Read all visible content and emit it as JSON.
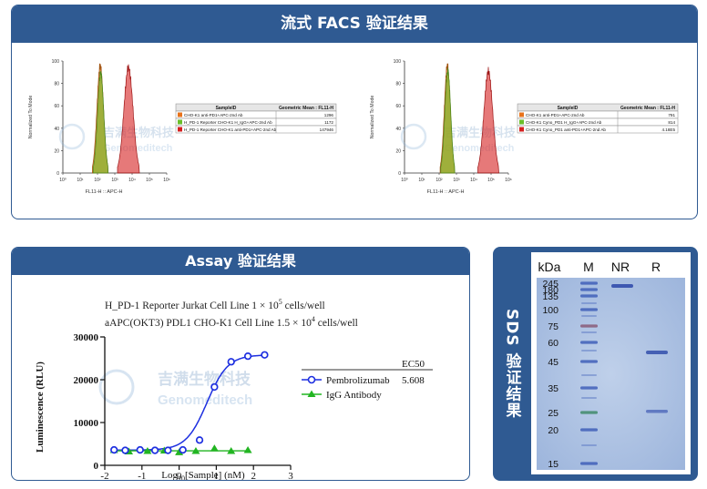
{
  "facs": {
    "title": "流式 FACS 验证结果",
    "left": {
      "y_axis_label": "Normalized To Mode",
      "x_axis_label": "FL11-H :: APC-H",
      "y_ticks": [
        "0",
        "20",
        "40",
        "60",
        "80",
        "100"
      ],
      "x_ticks": [
        "10⁰",
        "10¹",
        "10²",
        "10³",
        "10⁴",
        "10⁵",
        "10⁶"
      ],
      "table_headers": [
        "SampleID",
        "Geometric Mean : FL11-H"
      ],
      "rows": [
        {
          "sample": "CHO-K1 anti-PD1+APC-2nd Ab",
          "value": "1296",
          "color": "#e8731c"
        },
        {
          "sample": "H_PD-1 Reporter CHO-K1 H_IgG+APC-2nd Ab",
          "value": "1172",
          "color": "#6abf2a"
        },
        {
          "sample": "H_PD-1 Reporter CHO-K1 anti-PD1+APC-2nd Ab",
          "value": "147946",
          "color": "#d62020"
        }
      ]
    },
    "right": {
      "y_axis_label": "Normalized To Mode",
      "x_axis_label": "FL11-H :: APC-H",
      "y_ticks": [
        "0",
        "20",
        "40",
        "60",
        "80",
        "100"
      ],
      "x_ticks": [
        "10⁰",
        "10¹",
        "10²",
        "10³",
        "10⁴",
        "10⁵",
        "10⁶"
      ],
      "table_headers": [
        "SampleID",
        "Geometric Mean : FL11-H"
      ],
      "rows": [
        {
          "sample": "CHO-K1 anti-PD1+APC-2nd Ab",
          "value": "791",
          "color": "#e8731c"
        },
        {
          "sample": "CHO-K1 Cyno_PD1 H_IgG+APC-2nd Ab",
          "value": "814",
          "color": "#6abf2a"
        },
        {
          "sample": "CHO-K1 Cyno_PD1 anti-PD1+APC-2nd Ab",
          "value": "4.18E5",
          "color": "#d62020"
        }
      ]
    }
  },
  "assay": {
    "title": "Assay 验证结果",
    "header_line1": "H_PD-1 Reporter Jurkat Cell Line 1 × 10",
    "header_line1_exp": "5",
    "header_line1_unit": " cells/well",
    "header_line2": "aAPC(OKT3) PDL1 CHO-K1 Cell Line  1.5 × 10",
    "header_line2_exp": "4",
    "header_line2_unit": " cells/well",
    "legend_ec50_header": "EC50",
    "legend": [
      {
        "name": "Pembrolizumab",
        "ec50": "5.608",
        "color": "#1d2fe0",
        "marker": "circle"
      },
      {
        "name": "IgG Antibody",
        "ec50": "",
        "color": "#22b522",
        "marker": "triangle"
      }
    ],
    "ylabel": "Luminescence (RLU)",
    "xlabel_prefix": "Log",
    "xlabel_sub": "10",
    "xlabel_suffix": "[Sample] (nM)"
  },
  "chart_data": [
    {
      "type": "line",
      "title": "Assay 验证结果",
      "xlabel": "Log10[Sample] (nM)",
      "ylabel": "Luminescence (RLU)",
      "xlim": [
        -2,
        3
      ],
      "ylim": [
        0,
        30000
      ],
      "x_ticks": [
        "-2",
        "-1",
        "0",
        "1",
        "2",
        "3"
      ],
      "y_ticks": [
        "0",
        "10000",
        "20000",
        "30000"
      ],
      "series": [
        {
          "name": "Pembrolizumab",
          "x": [
            -1.75,
            -1.45,
            -1.05,
            -0.65,
            -0.3,
            0.1,
            0.55,
            0.95,
            1.4,
            1.85,
            2.3
          ],
          "y": [
            3600,
            3500,
            3600,
            3500,
            3500,
            3600,
            5900,
            18300,
            24200,
            25500,
            25800
          ]
        },
        {
          "name": "IgG Antibody",
          "x": [
            -1.75,
            -1.35,
            -0.85,
            -0.4,
            0.0,
            0.45,
            0.95,
            1.4,
            1.85
          ],
          "y": [
            3500,
            3200,
            3300,
            3400,
            3000,
            3300,
            3900,
            3300,
            3500
          ]
        }
      ]
    }
  ],
  "sds": {
    "title": "SDS 验证结果",
    "lane_labels": [
      "kDa",
      "M",
      "NR",
      "R"
    ],
    "markers": [
      "245",
      "180",
      "135",
      "100",
      "75",
      "60",
      "45",
      "35",
      "25",
      "20",
      "15"
    ]
  },
  "watermark": {
    "cn": "吉满生物科技",
    "en": "Genomeditech"
  }
}
